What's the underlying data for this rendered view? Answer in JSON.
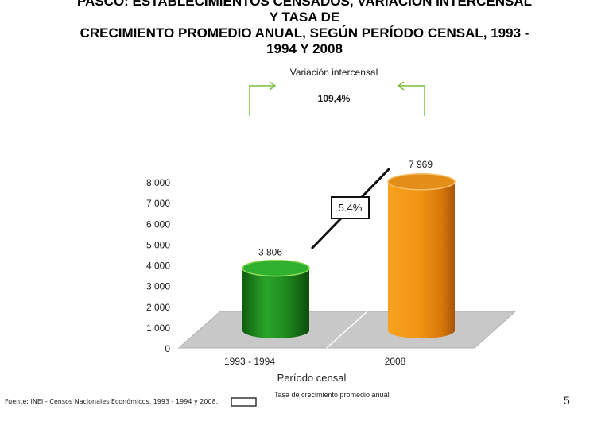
{
  "title": {
    "line1": "PASCO: ESTABLECIMIENTOS CENSADOS, VARIACIÓN INTERCENSAL",
    "line2": "Y TASA DE",
    "line3": "CRECIMIENTO PROMEDIO ANUAL, SEGÚN PERÍODO CENSAL, 1993 -",
    "line4": "1994 Y 2008"
  },
  "source": "Fuente: INEI - Censos Nacionales Económicos, 1993 - 1994 y 2008.",
  "page_number": "5",
  "colors": {
    "bar_1993": "#1e8a1e",
    "bar_2008": "#f0900a",
    "arrow": "#7cbf3c",
    "floor": "#c8c8c8"
  },
  "chart_data": {
    "type": "bar",
    "xlabel": "Período censal",
    "categories": [
      "1993 - 1994",
      "2008"
    ],
    "values": [
      3806,
      7969
    ],
    "value_labels": [
      "3 806",
      "7 969"
    ],
    "ylim": [
      0,
      8000
    ],
    "yticks": [
      0,
      1000,
      2000,
      3000,
      4000,
      5000,
      6000,
      7000,
      8000
    ],
    "ytick_labels": [
      "0",
      "1 000",
      "2 000",
      "3 000",
      "4 000",
      "5 000",
      "6 000",
      "7 000",
      "8 000"
    ],
    "growth_rate_label": "5.4%",
    "growth_rate_legend": "Tasa de crecimiento promedio anual",
    "variation_title": "Variación intercensal",
    "variation_value": "109,4%"
  }
}
